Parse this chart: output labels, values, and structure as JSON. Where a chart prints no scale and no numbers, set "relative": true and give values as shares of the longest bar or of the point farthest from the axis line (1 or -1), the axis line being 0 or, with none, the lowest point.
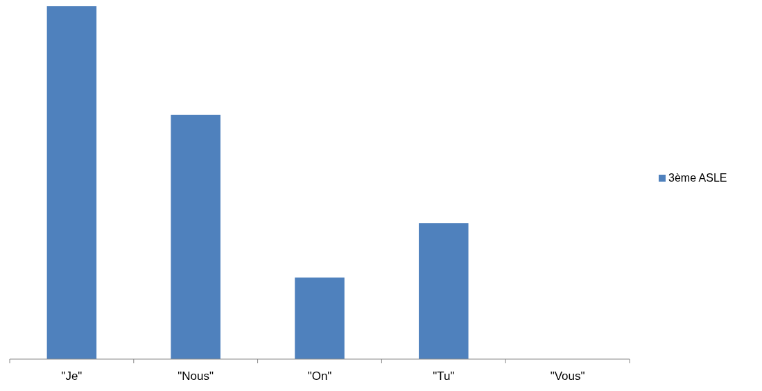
{
  "chart_data": {
    "type": "bar",
    "relative": true,
    "categories": [
      "\"Je\"",
      "\"Nous\"",
      "\"On\"",
      "\"Tu\"",
      "\"Vous\""
    ],
    "series": [
      {
        "name": "3ème ASLE",
        "color": "#4f81bd",
        "values": [
          1,
          0.692,
          0.231,
          0.385,
          0
        ]
      }
    ],
    "legend": "right"
  }
}
